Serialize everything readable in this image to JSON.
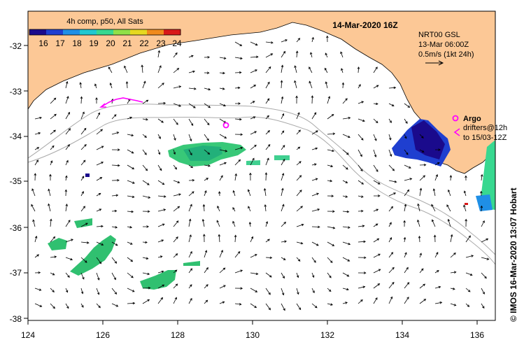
{
  "header": {
    "legend_title": "4h comp, p50, All Sats",
    "date": "14-Mar-2020 16Z",
    "current_product": "NRT00 GSL",
    "current_time": "13-Mar 06:00Z",
    "vector_scale": "0.5m/s (1kt 24h)",
    "argo_label": "Argo",
    "drifters_line1": "drifters@12h",
    "drifters_line2": "to 15/03-12Z",
    "credit": "© IMOS 16-Mar-2020 13:07 Hobart"
  },
  "colorbar": {
    "labels": [
      "16",
      "17",
      "18",
      "19",
      "20",
      "21",
      "22",
      "23",
      "24"
    ],
    "min": 15.5,
    "max": 24.5,
    "colors": [
      "#1a0a8c",
      "#1f3fd0",
      "#1f8fe6",
      "#20c8d0",
      "#38d890",
      "#90e048",
      "#e6d820",
      "#f08a1c",
      "#d81818"
    ]
  },
  "axes": {
    "lon_labels": [
      "124",
      "126",
      "128",
      "130",
      "132",
      "134",
      "136"
    ],
    "lat_labels": [
      "-32",
      "-33",
      "-34",
      "-35",
      "-36",
      "-37",
      "-38"
    ],
    "lon_range": [
      124,
      136.5
    ],
    "lat_range": [
      -31.2,
      -38.15
    ]
  },
  "colors": {
    "land": "#fcc896",
    "isobath": "#aaaaaa",
    "drifter": "#ff00ff",
    "arrow": "#000000"
  }
}
